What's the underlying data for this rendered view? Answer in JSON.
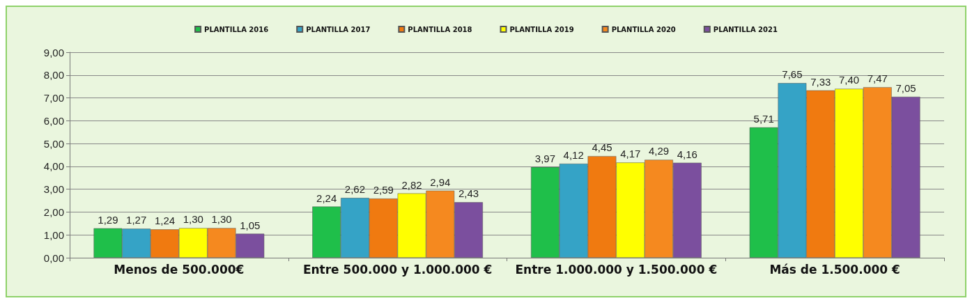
{
  "chart_data": {
    "type": "bar",
    "categories": [
      "Menos de 500.000€",
      "Entre 500.000 y 1.000.000 €",
      "Entre 1.000.000 y 1.500.000 €",
      "Más de 1.500.000 €"
    ],
    "series": [
      {
        "name": "PLANTILLA 2016",
        "color": "#1fbf4a",
        "values": [
          1.29,
          2.24,
          3.97,
          5.71
        ],
        "value_labels": [
          "1,29",
          "2,24",
          "3,97",
          "5,71"
        ]
      },
      {
        "name": "PLANTILLA 2017",
        "color": "#35a3c6",
        "values": [
          1.27,
          2.62,
          4.12,
          7.65
        ],
        "value_labels": [
          "1,27",
          "2,62",
          "4,12",
          "7,65"
        ]
      },
      {
        "name": "PLANTILLA 2018",
        "color": "#f07a10",
        "values": [
          1.24,
          2.59,
          4.45,
          7.33
        ],
        "value_labels": [
          "1,24",
          "2,59",
          "4,45",
          "7,33"
        ]
      },
      {
        "name": "PLANTILLA 2019",
        "color": "#ffff00",
        "values": [
          1.3,
          2.82,
          4.17,
          7.4
        ],
        "value_labels": [
          "1,30",
          "2,82",
          "4,17",
          "7,40"
        ]
      },
      {
        "name": "PLANTILLA 2020",
        "color": "#f5891f",
        "values": [
          1.3,
          2.94,
          4.29,
          7.47
        ],
        "value_labels": [
          "1,30",
          "2,94",
          "4,29",
          "7,47"
        ]
      },
      {
        "name": "PLANTILLA 2021",
        "color": "#7b4f9e",
        "values": [
          1.05,
          2.43,
          4.16,
          7.05
        ],
        "value_labels": [
          "1,05",
          "2,43",
          "4,16",
          "7,05"
        ]
      }
    ],
    "ylim": [
      0,
      9
    ],
    "yticks": [
      {
        "value": 0,
        "label": "0,00"
      },
      {
        "value": 1,
        "label": "1,00"
      },
      {
        "value": 2,
        "label": "2,00"
      },
      {
        "value": 3,
        "label": "3,00"
      },
      {
        "value": 4,
        "label": "4,00"
      },
      {
        "value": 5,
        "label": "5,00"
      },
      {
        "value": 6,
        "label": "6,00"
      },
      {
        "value": 7,
        "label": "7,00"
      },
      {
        "value": 8,
        "label": "8,00"
      },
      {
        "value": 9,
        "label": "9,00"
      }
    ],
    "grid": "y",
    "legend": "top"
  }
}
